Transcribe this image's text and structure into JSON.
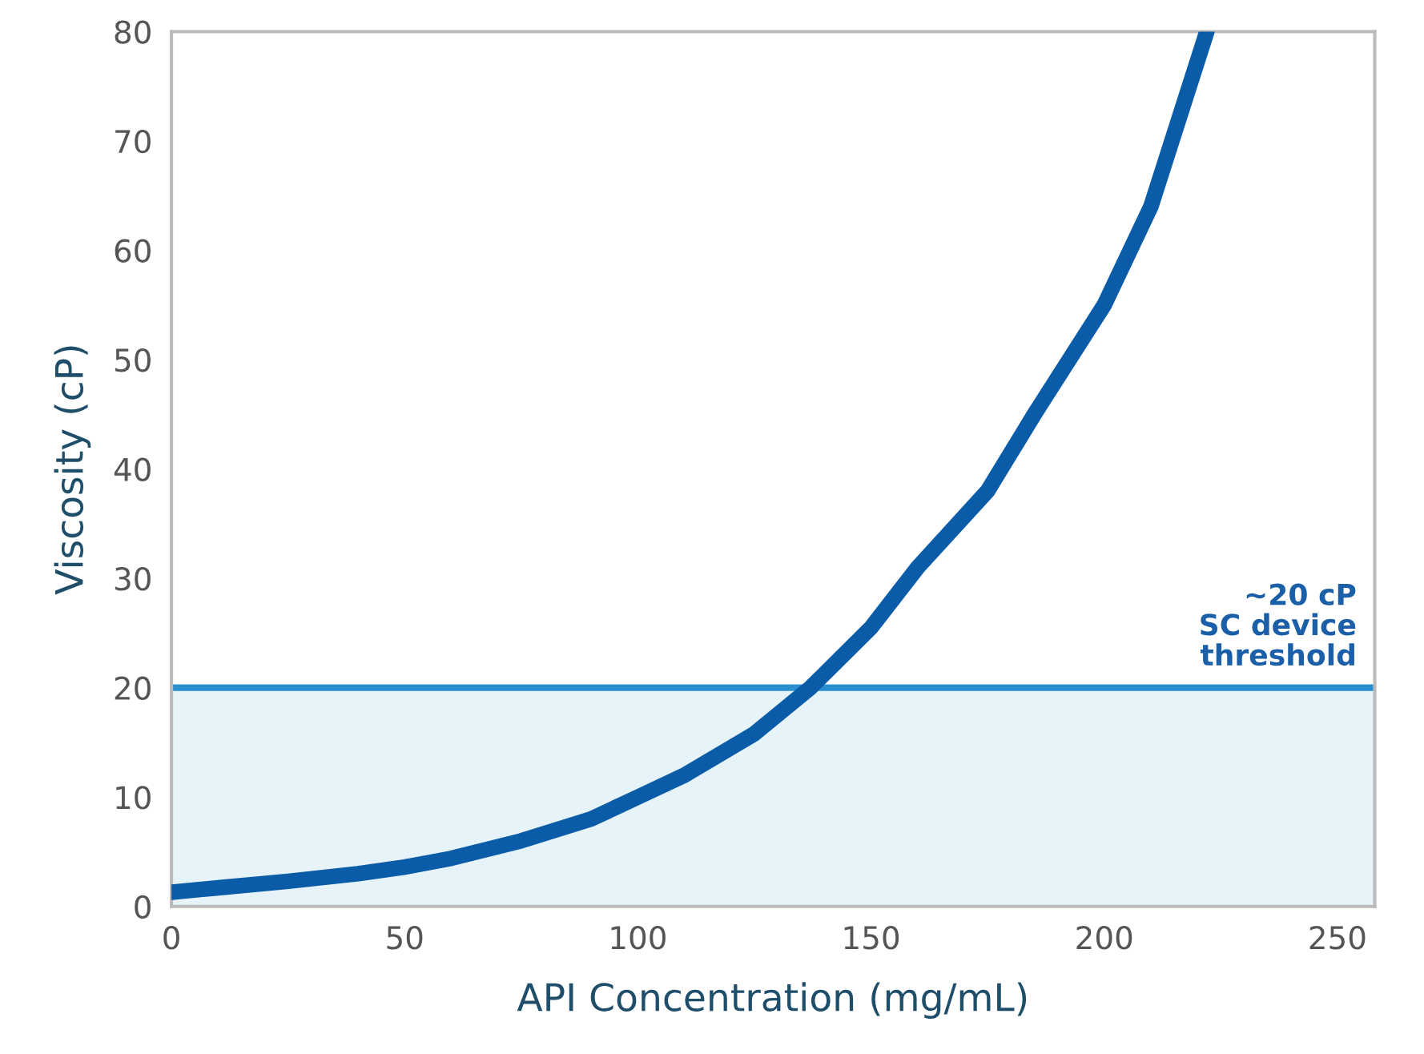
{
  "chart_data": {
    "type": "line",
    "xlabel": "API Concentration (mg/mL)",
    "ylabel": "Viscosity (cP)",
    "series": [
      {
        "color": "#0b5ca8",
        "x": [
          0,
          10,
          25,
          40,
          50,
          60,
          75,
          90,
          100,
          110,
          125,
          137,
          150,
          160,
          175,
          185,
          200,
          210,
          222
        ],
        "values": [
          1.3,
          1.7,
          2.3,
          3.0,
          3.6,
          4.4,
          6.0,
          8.0,
          10,
          12,
          15.8,
          20,
          25.5,
          31,
          38,
          45,
          55,
          64,
          80
        ]
      }
    ],
    "xlim": [
      0,
      258
    ],
    "xticks": [
      0,
      50,
      100,
      150,
      200,
      250
    ],
    "ylim": [
      0,
      80
    ],
    "yticks": [
      0,
      10,
      20,
      30,
      40,
      50,
      60,
      70,
      80
    ],
    "ref_lines": [
      {
        "axis": "y",
        "value": 20,
        "label": "~20 cP\nSC device\nthreshold",
        "color": "#2a8fcf"
      }
    ],
    "bands": [
      {
        "axis": "y",
        "from": 0,
        "to": 20,
        "color": "#e6f4f9"
      }
    ],
    "grid": false,
    "legend": false,
    "marker": "none",
    "line_style": "solid"
  }
}
